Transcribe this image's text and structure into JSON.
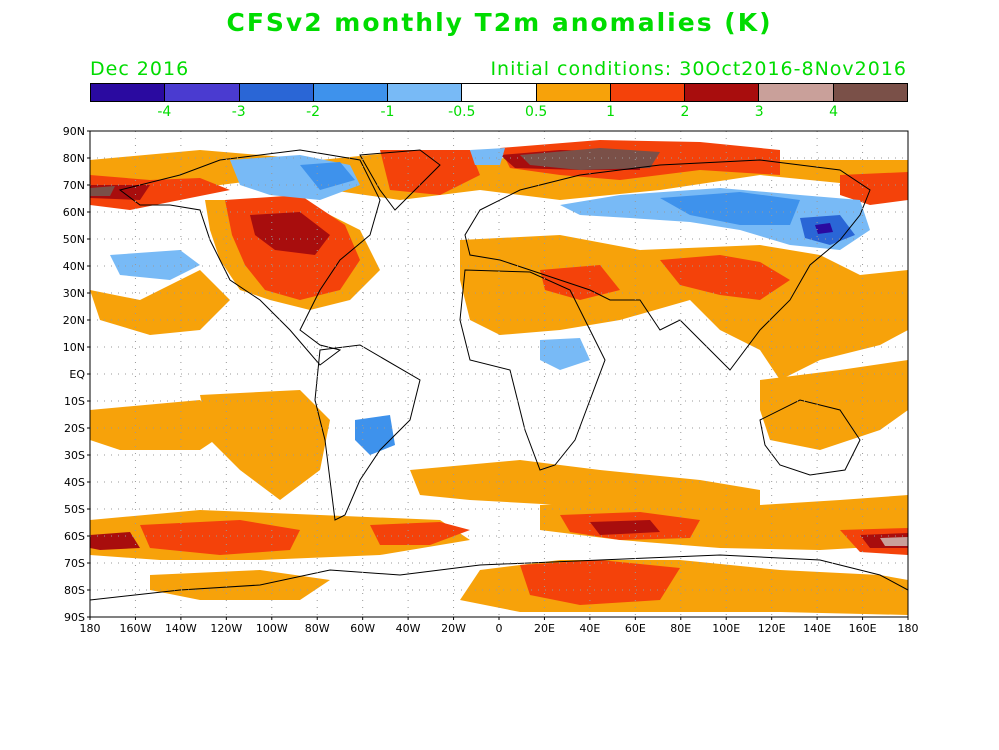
{
  "title": "CFSv2 monthly T2m anomalies (K)",
  "valid_month": "Dec 2016",
  "initial_conditions": "Initial conditions: 30Oct2016-8Nov2016",
  "colorbar": {
    "colors": [
      "#2a0aa0",
      "#4a3bd0",
      "#2a66d6",
      "#3e92ec",
      "#78baf6",
      "#ffffff",
      "#f7a20a",
      "#f4420a",
      "#a80d0d",
      "#c9a09a",
      "#7a5048"
    ],
    "labels": [
      "-4",
      "-3",
      "-2",
      "-1",
      "-0.5",
      "0.5",
      "1",
      "2",
      "3",
      "4"
    ]
  },
  "lat_ticks": [
    "90N",
    "80N",
    "70N",
    "60N",
    "50N",
    "40N",
    "30N",
    "20N",
    "10N",
    "EQ",
    "10S",
    "20S",
    "30S",
    "40S",
    "50S",
    "60S",
    "70S",
    "80S",
    "90S"
  ],
  "lon_ticks": [
    "180",
    "160W",
    "140W",
    "120W",
    "100W",
    "80W",
    "60W",
    "40W",
    "20W",
    "0",
    "20E",
    "40E",
    "60E",
    "80E",
    "100E",
    "120E",
    "140E",
    "160E",
    "180"
  ]
}
